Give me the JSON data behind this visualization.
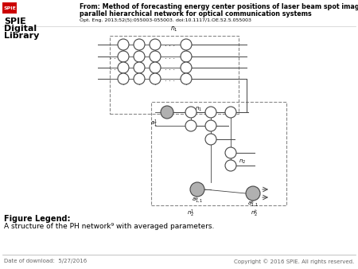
{
  "background_color": "#ffffff",
  "title_line1": "From: Method of forecasting energy center positions of laser beam spot images using a",
  "title_line2": "parallel hierarchical network for optical communication systems",
  "subtitle_text": "Opt. Eng. 2013;52(5):055003-055003. doi:10.1117/1.OE.52.5.055003",
  "figure_legend_label": "Figure Legend:",
  "figure_legend_text": "A structure of the PH network⁹ with averaged parameters.",
  "footer_left": "Date of download:  5/27/2016",
  "footer_right": "Copyright © 2016 SPIE. All rights reserved.",
  "node_color_white": "#ffffff",
  "node_color_gray": "#b0b0b0",
  "node_edge_color": "#444444",
  "line_color": "#444444",
  "box_edge_color": "#888888",
  "header_bg": "#ffffff",
  "spie_red": "#cc0000"
}
